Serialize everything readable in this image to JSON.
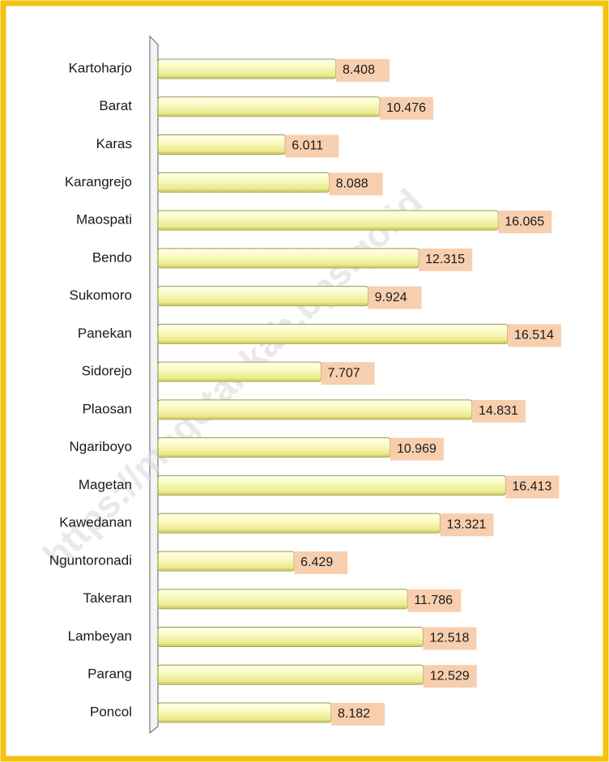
{
  "chart_data": {
    "type": "bar",
    "orientation": "horizontal",
    "watermark": "https://magetankab.bps.go.id",
    "categories": [
      "Kartoharjo",
      "Barat",
      "Karas",
      "Karangrejo",
      "Maospati",
      "Bendo",
      "Sukomoro",
      "Panekan",
      "Sidorejo",
      "Plaosan",
      "Ngariboyo",
      "Magetan",
      "Kawedanan",
      "Nguntoronadi",
      "Takeran",
      "Lambeyan",
      "Parang",
      "Poncol"
    ],
    "values": [
      8408,
      10476,
      6011,
      8088,
      16065,
      12315,
      9924,
      16514,
      7707,
      14831,
      10969,
      16413,
      13321,
      6429,
      11786,
      12518,
      12529,
      8182
    ],
    "value_labels": [
      "8.408",
      "10.476",
      "6.011",
      "8.088",
      "16.065",
      "12.315",
      "9.924",
      "16.514",
      "7.707",
      "14.831",
      "10.969",
      "16.413",
      "13.321",
      "6.429",
      "11.786",
      "12.518",
      "12.529",
      "8.182"
    ],
    "color": "#f3f19a",
    "label_color": "#f8cfae"
  }
}
